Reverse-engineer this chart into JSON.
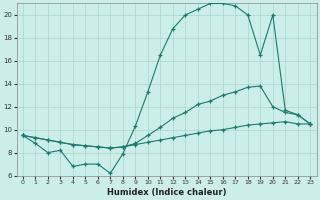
{
  "xlabel": "Humidex (Indice chaleur)",
  "background_color": "#cceee8",
  "line_color": "#1a7a6e",
  "grid_color": "#aad4ce",
  "xlim": [
    -0.5,
    23.5
  ],
  "ylim": [
    6,
    21
  ],
  "xticks": [
    0,
    1,
    2,
    3,
    4,
    5,
    6,
    7,
    8,
    9,
    10,
    11,
    12,
    13,
    14,
    15,
    16,
    17,
    18,
    19,
    20,
    21,
    22,
    23
  ],
  "yticks": [
    6,
    8,
    10,
    12,
    14,
    16,
    18,
    20
  ],
  "line1_x": [
    0,
    1,
    2,
    3,
    4,
    5,
    6,
    7,
    8,
    9,
    10,
    11,
    12,
    13,
    14,
    15,
    16,
    17,
    18,
    19,
    20,
    21,
    22,
    23
  ],
  "line1_y": [
    9.5,
    8.8,
    8.0,
    8.2,
    6.8,
    7.0,
    7.0,
    6.2,
    7.9,
    10.3,
    13.3,
    16.5,
    18.8,
    20.0,
    20.5,
    21.0,
    21.0,
    20.8,
    20.0,
    16.5,
    20.0,
    11.7,
    11.3,
    10.5
  ],
  "line2_x": [
    0,
    1,
    2,
    3,
    4,
    5,
    6,
    7,
    8,
    9,
    10,
    11,
    12,
    13,
    14,
    15,
    16,
    17,
    18,
    19,
    20,
    21,
    22,
    23
  ],
  "line2_y": [
    9.5,
    9.3,
    9.1,
    8.9,
    8.7,
    8.6,
    8.5,
    8.4,
    8.5,
    8.8,
    9.5,
    10.2,
    11.0,
    11.5,
    12.2,
    12.5,
    13.0,
    13.3,
    13.7,
    13.8,
    12.0,
    11.5,
    11.3,
    10.5
  ],
  "line3_x": [
    0,
    1,
    2,
    3,
    4,
    5,
    6,
    7,
    8,
    9,
    10,
    11,
    12,
    13,
    14,
    15,
    16,
    17,
    18,
    19,
    20,
    21,
    22,
    23
  ],
  "line3_y": [
    9.5,
    9.3,
    9.1,
    8.9,
    8.7,
    8.6,
    8.5,
    8.4,
    8.5,
    8.7,
    8.9,
    9.1,
    9.3,
    9.5,
    9.7,
    9.9,
    10.0,
    10.2,
    10.4,
    10.5,
    10.6,
    10.7,
    10.5,
    10.5
  ]
}
